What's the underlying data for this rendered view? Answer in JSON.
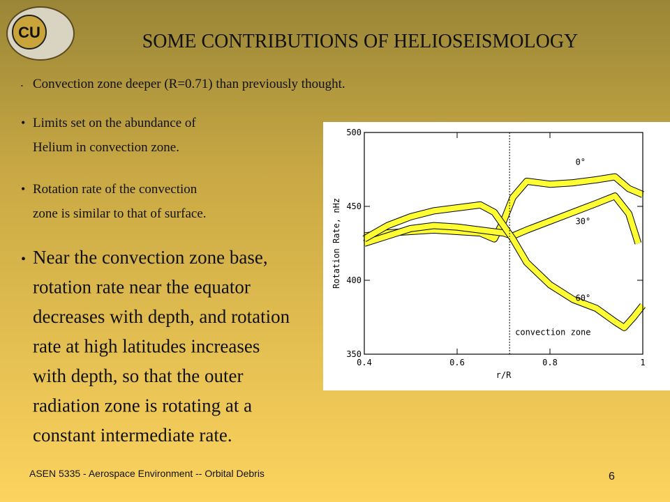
{
  "header": {
    "logo": "CU",
    "title": "SOME CONTRIBUTIONS OF  HELIOSEISMOLOGY"
  },
  "bullets": [
    {
      "lines": [
        "Convection zone deeper (R=0.71) than previously thought."
      ]
    },
    {
      "lines": [
        "Limits set on the abundance of",
        "Helium in convection zone."
      ]
    },
    {
      "lines": [
        "Rotation rate of the convection",
        "zone is similar to that of surface."
      ]
    },
    {
      "lines": [
        "Near the convection zone base,",
        "rotation rate near the equator",
        "decreases with depth, and rotation",
        "rate at high latitudes increases",
        "with depth, so that the outer",
        "radiation zone is rotating at a",
        "constant  intermediate rate."
      ]
    }
  ],
  "footer": {
    "text": "ASEN 5335 - Aerospace Environment -- Orbital Debris",
    "page": "6"
  },
  "chart_data": {
    "type": "line",
    "x_label": "r/R",
    "y_label": "Rotation Rate, nHz",
    "xlim": [
      0.4,
      1
    ],
    "ylim": [
      350,
      500
    ],
    "xticks": [
      0.4,
      0.6,
      0.8,
      1
    ],
    "yticks": [
      350,
      400,
      450,
      500
    ],
    "vline_x": 0.713,
    "annotations": [
      {
        "text": "0°",
        "x": 0.855,
        "y": 478
      },
      {
        "text": "30°",
        "x": 0.855,
        "y": 438
      },
      {
        "text": "60°",
        "x": 0.855,
        "y": 386
      },
      {
        "text": "convection zone",
        "x": 0.725,
        "y": 363
      }
    ],
    "color": "#ffff33",
    "series": [
      {
        "x": [
          0.4,
          0.45,
          0.5,
          0.55,
          0.6,
          0.65,
          0.68,
          0.7,
          0.72,
          0.75,
          0.8,
          0.85,
          0.9,
          0.94,
          0.97,
          1.0
        ],
        "values": [
          430,
          432,
          433,
          434,
          433,
          432,
          428,
          440,
          456,
          467,
          465,
          466,
          468,
          470,
          462,
          458
        ]
      },
      {
        "x": [
          0.4,
          0.45,
          0.5,
          0.55,
          0.6,
          0.65,
          0.7,
          0.72,
          0.75,
          0.8,
          0.85,
          0.9,
          0.94,
          0.97,
          0.99
        ],
        "values": [
          425,
          430,
          435,
          437,
          436,
          434,
          432,
          430,
          434,
          440,
          446,
          452,
          457,
          445,
          425
        ]
      },
      {
        "x": [
          0.4,
          0.45,
          0.5,
          0.55,
          0.6,
          0.65,
          0.68,
          0.7,
          0.72,
          0.75,
          0.8,
          0.85,
          0.9,
          0.94,
          0.96,
          0.98,
          1.0
        ],
        "values": [
          428,
          437,
          443,
          447,
          449,
          451,
          446,
          437,
          428,
          412,
          397,
          387,
          381,
          372,
          368,
          375,
          383
        ]
      }
    ]
  }
}
